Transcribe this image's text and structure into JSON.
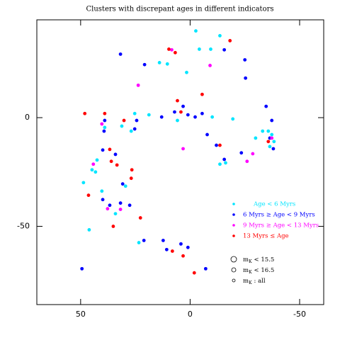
{
  "chart_data": {
    "type": "scatter",
    "title": "Clusters with discrepant ages in different indicators",
    "xlim": [
      70,
      -61
    ],
    "ylim": [
      -86,
      45
    ],
    "xticks": [
      50,
      0,
      -50
    ],
    "yticks": [
      0,
      -50
    ],
    "series": [
      {
        "name": "Age < 6 Myrs",
        "color": "#00e5ff",
        "x": [
          -2.6,
          -13.6,
          14.0,
          10.4,
          1.6,
          -9.4,
          -4.2,
          25.3,
          18.8,
          31.2,
          39.0,
          26.9,
          42.5,
          43.2,
          44.8,
          48.7,
          40.3,
          29.5,
          34.1,
          46.1,
          23.4,
          -13.6,
          -16.2,
          -29.9,
          -35.7,
          -37.3,
          -38.3,
          -36.4,
          -33.1,
          -19.5,
          -10.1,
          5.8
        ],
        "values": [
          39.9,
          37.7,
          25.3,
          24.7,
          20.8,
          31.5,
          31.5,
          1.9,
          1.3,
          -3.9,
          -4.5,
          -6.2,
          -19.5,
          -25.0,
          -24.0,
          -29.9,
          -33.8,
          -31.5,
          -44.2,
          -51.6,
          -57.5,
          -21.4,
          -20.8,
          -9.4,
          -6.2,
          -7.8,
          -11.0,
          -13.3,
          -6.2,
          -0.6,
          0.3,
          -1.3
        ]
      },
      {
        "name": "6 Myrs ≥ Age < 9 Myrs",
        "color": "#0000ff",
        "x": [
          -25.0,
          -25.3,
          -15.6,
          20.8,
          31.8,
          7.1,
          3.2,
          1.0,
          -2.3,
          -5.5,
          13.0,
          24.4,
          25.3,
          -34.7,
          -37.3,
          -7.8,
          -12.0,
          -15.6,
          -23.4,
          -36.4,
          -38.0,
          39.0,
          39.3,
          39.9,
          34.1,
          30.8,
          39.9,
          36.7,
          31.8,
          27.6,
          21.1,
          12.3,
          10.7,
          4.2,
          1.0,
          -7.1,
          49.4
        ],
        "values": [
          26.6,
          18.2,
          31.2,
          24.4,
          29.2,
          2.6,
          5.2,
          1.3,
          0.3,
          1.9,
          0.3,
          -1.3,
          -5.2,
          5.2,
          -1.3,
          -7.8,
          -12.7,
          -19.2,
          -16.2,
          -9.4,
          -14.3,
          -1.3,
          -6.2,
          -14.9,
          -16.9,
          -30.5,
          -37.7,
          -40.3,
          -39.3,
          -40.3,
          -56.5,
          -56.5,
          -60.7,
          -58.1,
          -59.7,
          -69.5,
          -69.5
        ]
      },
      {
        "name": "9 Myrs ≥ Age < 13 Myrs",
        "color": "#ff00ff",
        "x": [
          8.4,
          -9.1,
          23.7,
          40.3,
          3.2,
          -28.6,
          -37.3,
          -26.0,
          37.7,
          31.8,
          44.2
        ],
        "values": [
          31.2,
          24.0,
          14.9,
          -2.9,
          -14.3,
          -16.6,
          -9.4,
          -20.1,
          -41.9,
          -42.2,
          -21.4
        ]
      },
      {
        "name": "13 Myrs ≤ Age",
        "color": "#ff0000",
        "x": [
          -18.2,
          9.7,
          6.8,
          5.8,
          -5.5,
          4.2,
          48.1,
          39.0,
          30.2,
          -13.6,
          -35.7,
          36.7,
          36.0,
          33.4,
          26.6,
          26.9,
          46.4,
          35.1,
          22.7,
          8.1,
          3.2,
          -1.9
        ],
        "values": [
          35.4,
          31.5,
          29.9,
          7.8,
          10.7,
          2.6,
          1.9,
          1.9,
          -1.3,
          -12.7,
          -11.0,
          -14.6,
          -20.1,
          -21.8,
          -24.0,
          -27.9,
          -35.7,
          -50.0,
          -46.1,
          -61.4,
          -63.6,
          -71.4
        ]
      }
    ],
    "size_legend": [
      {
        "symbol": "m",
        "sub": "K",
        "text": "< 15.5"
      },
      {
        "symbol": "m",
        "sub": "K",
        "text": "< 16.5"
      },
      {
        "symbol": "m",
        "sub": "K",
        "text": ": all"
      }
    ]
  }
}
